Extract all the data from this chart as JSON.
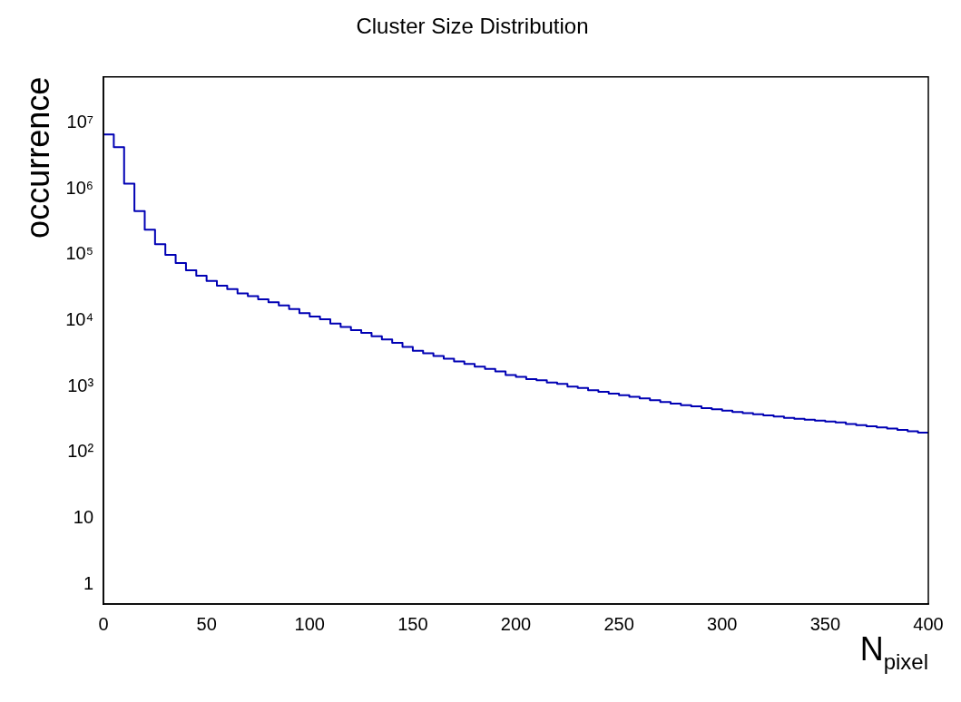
{
  "chart_data": {
    "type": "histogram",
    "title": "Cluster Size Distribution",
    "xlabel": "N$_{pixel}$",
    "ylabel": "occurrence",
    "color": "#0000b4",
    "bins": [
      0,
      5,
      10,
      15,
      20,
      25,
      30,
      35,
      40,
      45,
      50,
      55,
      60,
      65,
      70,
      75,
      80,
      85,
      90,
      95,
      100,
      105,
      110,
      115,
      120,
      125,
      130,
      135,
      140,
      145,
      150,
      155,
      160,
      165,
      170,
      175,
      180,
      185,
      190,
      195,
      200,
      205,
      210,
      215,
      220,
      225,
      230,
      235,
      240,
      245,
      250,
      255,
      260,
      265,
      270,
      275,
      280,
      285,
      290,
      295,
      300,
      305,
      310,
      315,
      320,
      325,
      330,
      335,
      340,
      345,
      350,
      355,
      360,
      365,
      370,
      375,
      380,
      385,
      390,
      395,
      400
    ],
    "values": [
      6700000,
      4300000,
      1200000,
      460000,
      240000,
      145000,
      100000,
      75000,
      58000,
      48000,
      40000,
      34000,
      30000,
      26000,
      23500,
      21000,
      19000,
      17000,
      15000,
      13000,
      11500,
      10500,
      9000,
      8000,
      7200,
      6500,
      5800,
      5200,
      4600,
      4000,
      3500,
      3200,
      2900,
      2650,
      2400,
      2200,
      2000,
      1850,
      1700,
      1500,
      1400,
      1300,
      1250,
      1150,
      1100,
      1000,
      950,
      880,
      830,
      780,
      740,
      700,
      660,
      620,
      580,
      550,
      520,
      500,
      470,
      450,
      430,
      410,
      395,
      380,
      365,
      350,
      335,
      325,
      315,
      305,
      295,
      285,
      270,
      260,
      250,
      240,
      230,
      220,
      210,
      200
    ],
    "log": "y",
    "xlim": [
      0,
      400
    ],
    "xticks": [
      0,
      50,
      100,
      150,
      200,
      250,
      300,
      350,
      400
    ],
    "ylim": [
      0.5,
      50000000
    ],
    "yticks": [
      1,
      10,
      {
        "value": 100,
        "label": "10²"
      },
      {
        "value": 1000,
        "label": "10³"
      },
      {
        "value": 10000,
        "label": "10⁴"
      },
      {
        "value": 100000,
        "label": "10⁵"
      },
      {
        "value": 1000000,
        "label": "10⁶"
      },
      {
        "value": 10000000,
        "label": "10⁷"
      }
    ],
    "grid": false,
    "legend": false
  }
}
